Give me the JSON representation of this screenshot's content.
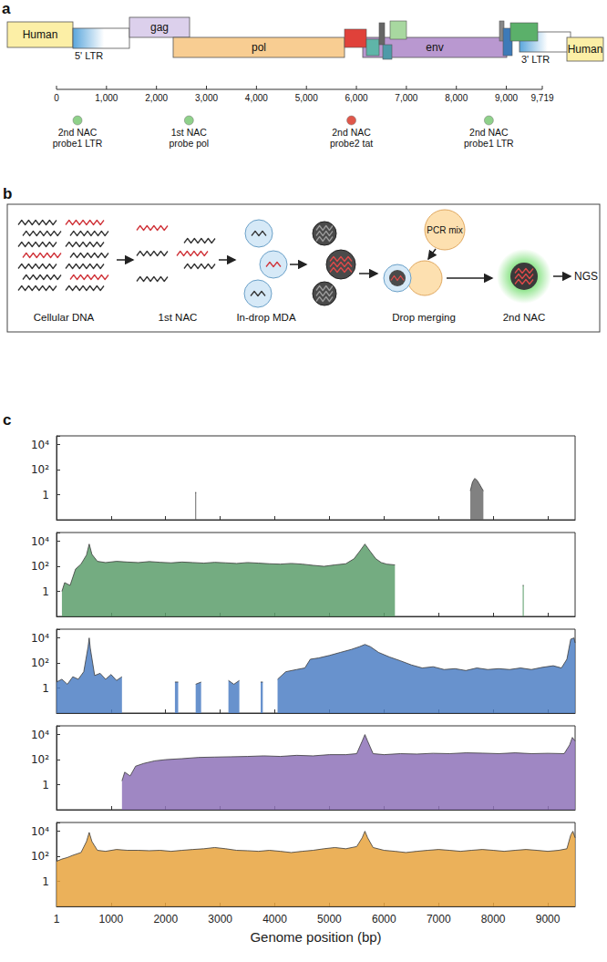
{
  "diagram_a": {
    "label": "a",
    "segments": [
      {
        "label": "Human",
        "color": "#fcefa6"
      },
      {
        "label": "5' LTR",
        "color": "#5aa6dc"
      },
      {
        "label": "gag",
        "color": "#dcd0ec"
      },
      {
        "label": "pol",
        "color": "#f8cd92"
      },
      {
        "label": "env",
        "color": "#b998d0"
      },
      {
        "label": "3' LTR",
        "color": "#5aa6dc"
      },
      {
        "label": "Human",
        "color": "#fcefa6"
      }
    ],
    "axis": {
      "lim": [
        0,
        9719
      ],
      "ticks": [
        0,
        {
          "value": 1000,
          "label": "1,000"
        },
        {
          "value": 2000,
          "label": "2,000"
        },
        {
          "value": 3000,
          "label": "3,000"
        },
        {
          "value": 4000,
          "label": "4,000"
        },
        {
          "value": 5000,
          "label": "5,000"
        },
        {
          "value": 6000,
          "label": "6,000"
        },
        {
          "value": 7000,
          "label": "7,000"
        },
        {
          "value": 8000,
          "label": "8,000"
        },
        {
          "value": 9000,
          "label": "9,000"
        },
        {
          "value": 9719,
          "label": "9,719"
        }
      ]
    },
    "probes": [
      {
        "position": 420,
        "color": "#8fd18a",
        "lines": [
          "2nd NAC",
          "probe1 LTR"
        ]
      },
      {
        "position": 2650,
        "color": "#8fd18a",
        "lines": [
          "1st NAC",
          "probe pol"
        ]
      },
      {
        "position": 5900,
        "color": "#e0574a",
        "lines": [
          "2nd NAC",
          "probe2 tat"
        ]
      },
      {
        "position": 8650,
        "color": "#8fd18a",
        "lines": [
          "2nd NAC",
          "probe1 LTR"
        ]
      }
    ]
  },
  "diagram_b": {
    "label": "b",
    "steps": [
      "Cellular DNA",
      "1st NAC",
      "In-drop MDA",
      "Drop merging",
      "2nd NAC"
    ],
    "reagent": "PCR mix",
    "output": "NGS"
  },
  "chart_label": "c",
  "chart_data": [
    {
      "type": "area",
      "color": "#6b6b6b",
      "log": "y",
      "tick_labels": "y",
      "xlim": [
        1,
        9500
      ],
      "xticks": [
        1,
        1000,
        2000,
        3000,
        4000,
        5000,
        6000,
        7000,
        8000,
        9000
      ],
      "ylim": [
        0.01,
        50000
      ],
      "yticks": [
        1,
        {
          "value": 100,
          "label": "10²"
        },
        {
          "value": 10000,
          "label": "10⁴"
        }
      ],
      "x": [
        1,
        2500,
        2540,
        2560,
        2600,
        7540,
        7580,
        7620,
        7660,
        7700,
        7740,
        7780,
        7820,
        7860,
        9500
      ],
      "values": [
        null,
        null,
        1.5,
        1.5,
        null,
        null,
        2,
        10,
        20,
        15,
        8,
        4,
        2,
        null,
        null
      ]
    },
    {
      "type": "area",
      "color": "#5c9e6b",
      "log": "y",
      "tick_labels": "y",
      "xlim": [
        1,
        9500
      ],
      "xticks": [
        1,
        1000,
        2000,
        3000,
        4000,
        5000,
        6000,
        7000,
        8000,
        9000
      ],
      "ylim": [
        0.01,
        50000
      ],
      "yticks": [
        1,
        {
          "value": 100,
          "label": "10²"
        },
        {
          "value": 10000,
          "label": "10⁴"
        }
      ],
      "x": [
        1,
        100,
        150,
        250,
        350,
        450,
        550,
        600,
        650,
        750,
        900,
        1100,
        1300,
        1500,
        1700,
        1900,
        2100,
        2300,
        2500,
        2700,
        2900,
        3100,
        3300,
        3500,
        3700,
        3900,
        4100,
        4300,
        4500,
        4700,
        4900,
        5100,
        5300,
        5450,
        5550,
        5650,
        5750,
        5850,
        5950,
        6050,
        6200,
        6220,
        8520,
        8540,
        8560,
        8580,
        9500
      ],
      "values": [
        null,
        1,
        5,
        3,
        60,
        150,
        800,
        6000,
        900,
        250,
        200,
        250,
        220,
        200,
        240,
        210,
        190,
        220,
        200,
        180,
        210,
        190,
        170,
        200,
        180,
        160,
        150,
        170,
        150,
        120,
        100,
        130,
        160,
        400,
        1500,
        6000,
        1500,
        400,
        200,
        150,
        130,
        null,
        null,
        3,
        3,
        null,
        null
      ]
    },
    {
      "type": "area",
      "color": "#4d7fc4",
      "log": "y",
      "tick_labels": "y",
      "xlim": [
        1,
        9500
      ],
      "xticks": [
        1,
        1000,
        2000,
        3000,
        4000,
        5000,
        6000,
        7000,
        8000,
        9000
      ],
      "ylim": [
        0.01,
        50000
      ],
      "yticks": [
        1,
        {
          "value": 100,
          "label": "10²"
        },
        {
          "value": 10000,
          "label": "10⁴"
        }
      ],
      "x": [
        1,
        100,
        200,
        300,
        400,
        500,
        580,
        600,
        620,
        700,
        800,
        900,
        1000,
        1100,
        1200,
        1250,
        2150,
        2170,
        2230,
        2250,
        2520,
        2550,
        2650,
        2680,
        3120,
        3150,
        3250,
        3350,
        3380,
        3720,
        3740,
        3780,
        3800,
        4020,
        4050,
        4200,
        4400,
        4550,
        4650,
        4800,
        5000,
        5200,
        5400,
        5550,
        5650,
        5750,
        5900,
        6100,
        6300,
        6500,
        6700,
        6900,
        7100,
        7300,
        7500,
        7700,
        7900,
        8100,
        8300,
        8500,
        8700,
        8900,
        9100,
        9250,
        9350,
        9420,
        9480,
        9500
      ],
      "values": [
        3,
        5,
        2,
        8,
        5,
        20,
        2000,
        10000,
        1500,
        10,
        15,
        5,
        12,
        4,
        8,
        null,
        null,
        3,
        3,
        null,
        null,
        2,
        3,
        null,
        null,
        4,
        2,
        4,
        null,
        null,
        3,
        3,
        null,
        null,
        5,
        20,
        30,
        40,
        200,
        250,
        400,
        700,
        1200,
        2000,
        3000,
        2000,
        700,
        300,
        150,
        70,
        40,
        50,
        30,
        35,
        25,
        40,
        30,
        35,
        30,
        40,
        30,
        45,
        60,
        40,
        200,
        8000,
        10000,
        4000
      ]
    },
    {
      "type": "area",
      "color": "#8e72b8",
      "log": "y",
      "tick_labels": "y",
      "xlim": [
        1,
        9500
      ],
      "xticks": [
        1,
        1000,
        2000,
        3000,
        4000,
        5000,
        6000,
        7000,
        8000,
        9000
      ],
      "ylim": [
        0.01,
        50000
      ],
      "yticks": [
        1,
        {
          "value": 100,
          "label": "10²"
        },
        {
          "value": 10000,
          "label": "10⁴"
        }
      ],
      "x": [
        1,
        1180,
        1200,
        1250,
        1350,
        1450,
        1600,
        1800,
        2000,
        2300,
        2600,
        2900,
        3200,
        3500,
        3800,
        4100,
        4400,
        4700,
        5000,
        5300,
        5500,
        5600,
        5650,
        5700,
        5800,
        6000,
        6300,
        6600,
        6900,
        7200,
        7500,
        7800,
        8100,
        8400,
        8700,
        9000,
        9300,
        9400,
        9450,
        9500
      ],
      "values": [
        null,
        null,
        2,
        10,
        5,
        30,
        50,
        80,
        100,
        120,
        150,
        160,
        170,
        180,
        200,
        180,
        220,
        200,
        250,
        250,
        300,
        3000,
        10000,
        3000,
        300,
        250,
        300,
        280,
        320,
        300,
        350,
        330,
        300,
        350,
        300,
        320,
        300,
        1500,
        6000,
        3000
      ]
    },
    {
      "type": "area",
      "color": "#e8a33d",
      "log": "y",
      "xlabel": "Genome position (bp)",
      "xlim": [
        1,
        9500
      ],
      "xticks": [
        1,
        1000,
        2000,
        3000,
        4000,
        5000,
        6000,
        7000,
        8000,
        9000
      ],
      "ylim": [
        0.01,
        50000
      ],
      "yticks": [
        1,
        {
          "value": 100,
          "label": "10²"
        },
        {
          "value": 10000,
          "label": "10⁴"
        }
      ],
      "x": [
        1,
        100,
        200,
        300,
        450,
        550,
        600,
        650,
        750,
        900,
        1100,
        1300,
        1500,
        1700,
        1900,
        2100,
        2300,
        2500,
        2700,
        2900,
        3100,
        3300,
        3500,
        3700,
        3900,
        4100,
        4300,
        4500,
        4700,
        4900,
        5100,
        5300,
        5500,
        5600,
        5650,
        5700,
        5800,
        6000,
        6200,
        6400,
        6600,
        6800,
        7000,
        7200,
        7400,
        7600,
        7800,
        8000,
        8200,
        8400,
        8600,
        8800,
        9000,
        9200,
        9350,
        9420,
        9460,
        9500
      ],
      "values": [
        40,
        60,
        80,
        120,
        200,
        1500,
        8000,
        1500,
        300,
        250,
        350,
        300,
        300,
        280,
        300,
        250,
        300,
        350,
        400,
        500,
        400,
        300,
        280,
        250,
        300,
        250,
        200,
        250,
        300,
        400,
        500,
        400,
        600,
        3000,
        10000,
        3000,
        500,
        300,
        250,
        200,
        250,
        300,
        350,
        300,
        250,
        300,
        350,
        300,
        250,
        300,
        350,
        300,
        250,
        300,
        400,
        5000,
        10000,
        3000
      ]
    }
  ]
}
